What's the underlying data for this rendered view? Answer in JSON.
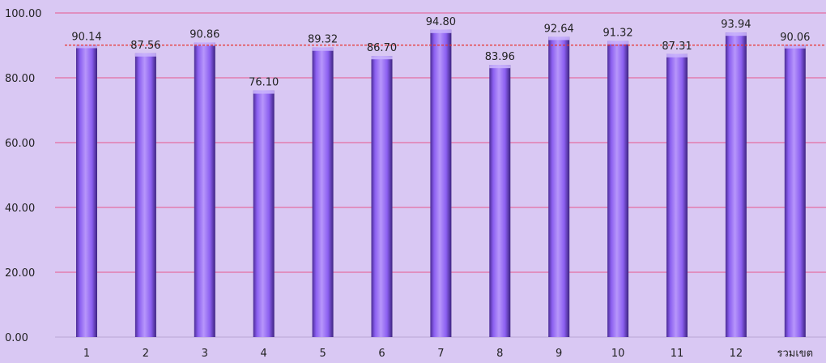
{
  "chart_data": {
    "type": "bar",
    "categories": [
      "1",
      "2",
      "3",
      "4",
      "5",
      "6",
      "7",
      "8",
      "9",
      "10",
      "11",
      "12",
      "รวมเขต"
    ],
    "values": [
      90.14,
      87.56,
      90.86,
      76.1,
      89.32,
      86.7,
      94.8,
      83.96,
      92.64,
      91.32,
      87.31,
      93.94,
      90.06
    ],
    "value_labels": [
      "90.14",
      "87.56",
      "90.86",
      "76.10",
      "89.32",
      "86.70",
      "94.80",
      "83.96",
      "92.64",
      "91.32",
      "87.31",
      "93.94",
      "90.06"
    ],
    "title": "",
    "xlabel": "",
    "ylabel": "",
    "ylim": [
      0,
      100
    ],
    "y_ticks": [
      "0.00",
      "20.00",
      "40.00",
      "60.00",
      "80.00",
      "100.00"
    ],
    "y_tick_values": [
      0,
      20,
      40,
      60,
      80,
      100
    ],
    "reference_line": {
      "value": 90.06,
      "style": "dashed",
      "color": "#e8302a"
    },
    "grid": true,
    "legend": "none",
    "colors": {
      "background": "#d9c8f3",
      "gridline": "#e8588e",
      "bar_light": "#a884f5",
      "bar_mid": "#8b5ff0",
      "bar_dark": "#4b2c95",
      "text": "#222222"
    }
  }
}
